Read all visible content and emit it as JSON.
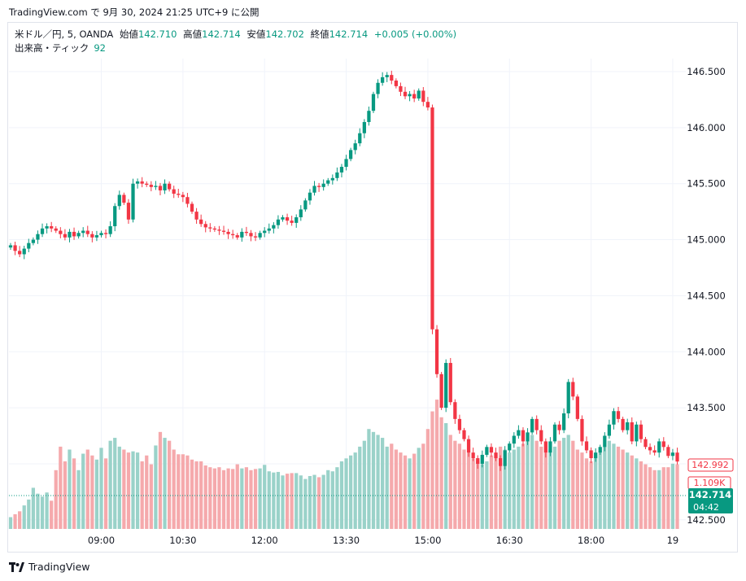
{
  "header": {
    "text": "TradingView.com で 9月 30, 2024 21:25 UTC+9 に公開"
  },
  "legend": {
    "symbol": "米ドル／円, 5, OANDA",
    "open_label": "始値",
    "open": "142.710",
    "high_label": "高値",
    "high": "142.714",
    "low_label": "安値",
    "low": "142.702",
    "close_label": "終値",
    "close": "142.714",
    "change": "+0.005 (+0.00%)",
    "volume_label": "出来高・ティック",
    "volume": "92"
  },
  "badges": {
    "volume_value": "1.109K",
    "price_value": "142.992",
    "last_price": "142.714",
    "countdown": "04:42"
  },
  "footer": {
    "brand": "TradingView"
  },
  "colors": {
    "up": "#089981",
    "down": "#f23645",
    "up_vol": "#9ad2c9",
    "down_vol": "#f5a9ac",
    "grid": "#f0f3fa"
  },
  "chart_data": {
    "type": "candlestick",
    "y_ticks": [
      "146.500",
      "146.000",
      "145.500",
      "145.000",
      "144.500",
      "144.000",
      "143.500",
      "143.000",
      "142.500"
    ],
    "ylim": [
      142.38,
      146.62
    ],
    "x_ticks": [
      {
        "label": "09:00",
        "index": 20
      },
      {
        "label": "10:30",
        "index": 38
      },
      {
        "label": "12:00",
        "index": 56
      },
      {
        "label": "13:30",
        "index": 74
      },
      {
        "label": "15:00",
        "index": 92
      },
      {
        "label": "16:30",
        "index": 110
      },
      {
        "label": "18:00",
        "index": 128
      },
      {
        "label": "19",
        "index": 146
      }
    ],
    "volume_max": 1800,
    "closes": [
      144.95,
      144.9,
      144.87,
      144.92,
      144.97,
      145.0,
      145.05,
      145.1,
      145.12,
      145.1,
      145.08,
      145.05,
      145.02,
      145.07,
      145.03,
      145.06,
      145.08,
      145.05,
      145.02,
      145.04,
      145.06,
      145.05,
      145.12,
      145.3,
      145.4,
      145.33,
      145.18,
      145.5,
      145.52,
      145.5,
      145.49,
      145.47,
      145.48,
      145.44,
      145.5,
      145.45,
      145.41,
      145.4,
      145.38,
      145.32,
      145.25,
      145.18,
      145.14,
      145.11,
      145.1,
      145.09,
      145.08,
      145.07,
      145.05,
      145.04,
      145.02,
      145.07,
      145.06,
      145.03,
      145.02,
      145.06,
      145.08,
      145.1,
      145.13,
      145.18,
      145.2,
      145.17,
      145.15,
      145.2,
      145.27,
      145.35,
      145.42,
      145.48,
      145.47,
      145.5,
      145.53,
      145.55,
      145.6,
      145.65,
      145.72,
      145.8,
      145.86,
      145.95,
      146.05,
      146.15,
      146.3,
      146.4,
      146.45,
      146.47,
      146.42,
      146.37,
      146.32,
      146.28,
      146.3,
      146.26,
      146.33,
      146.23,
      146.18,
      144.2,
      143.8,
      143.5,
      143.9,
      143.55,
      143.4,
      143.3,
      143.22,
      143.1,
      143.05,
      143.0,
      143.08,
      143.15,
      143.1,
      143.05,
      142.98,
      143.12,
      143.18,
      143.25,
      143.3,
      143.2,
      143.28,
      143.4,
      143.3,
      143.2,
      143.1,
      143.2,
      143.35,
      143.3,
      143.45,
      143.73,
      143.6,
      143.4,
      143.2,
      143.12,
      143.05,
      143.1,
      143.15,
      143.25,
      143.35,
      143.47,
      143.4,
      143.3,
      143.37,
      143.2,
      143.35,
      143.22,
      143.15,
      143.12,
      143.1,
      143.2,
      143.15,
      143.07,
      143.1,
      143.02
    ],
    "volumes": [
      200,
      250,
      300,
      400,
      500,
      700,
      600,
      550,
      620,
      480,
      1000,
      1400,
      1150,
      1350,
      1200,
      1000,
      1280,
      1350,
      1250,
      1180,
      1380,
      1200,
      1500,
      1550,
      1400,
      1350,
      1300,
      1320,
      1300,
      1150,
      1250,
      1100,
      1420,
      1650,
      1550,
      1500,
      1350,
      1270,
      1270,
      1250,
      1180,
      1150,
      1150,
      1080,
      1050,
      1030,
      1050,
      1000,
      1030,
      1020,
      1100,
      1030,
      1050,
      1000,
      1020,
      1030,
      1090,
      980,
      960,
      970,
      910,
      940,
      950,
      950,
      910,
      850,
      900,
      920,
      880,
      920,
      1000,
      980,
      1050,
      1150,
      1200,
      1250,
      1300,
      1400,
      1500,
      1700,
      1650,
      1600,
      1550,
      1400,
      1450,
      1350,
      1300,
      1250,
      1200,
      1280,
      1380,
      1450,
      1700,
      2000,
      2200,
      1900,
      1800,
      1600,
      1500,
      1450,
      1350,
      1300,
      1200,
      1150,
      1100,
      1150,
      1250,
      1300,
      1400,
      1350,
      1300,
      1350,
      1400,
      1450,
      1500,
      1600,
      1500,
      1400,
      1300,
      1350,
      1400,
      1500,
      1550,
      1600,
      1500,
      1350,
      1300,
      1200,
      1150,
      1250,
      1300,
      1400,
      1500,
      1450,
      1400,
      1350,
      1300,
      1250,
      1200,
      1150,
      1100,
      1050,
      1000,
      1000,
      1050,
      1050,
      1110,
      1100
    ]
  }
}
